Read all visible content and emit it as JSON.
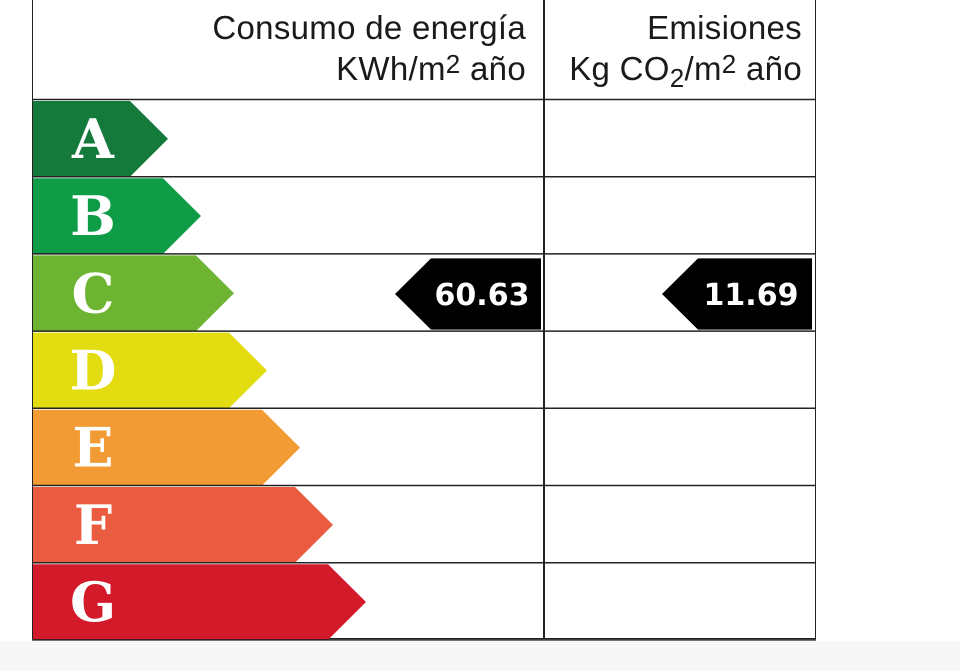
{
  "header": {
    "consumo_line1": "Consumo de energía",
    "consumo_line2_pre": "KWh/m",
    "consumo_line2_sup": "2",
    "consumo_line2_post": " año",
    "emisiones_line1": "Emisiones",
    "emisiones_line2_pre": "Kg CO",
    "emisiones_line2_sub": "2",
    "emisiones_line2_mid": "/m",
    "emisiones_line2_sup": "2",
    "emisiones_line2_post": " año"
  },
  "chart_data": {
    "type": "bar",
    "categories": [
      "A",
      "B",
      "C",
      "D",
      "E",
      "F",
      "G"
    ],
    "colors": [
      "#137a3b",
      "#0f9c47",
      "#6db432",
      "#e3dc10",
      "#f29a33",
      "#e95c3f",
      "#d31a2b"
    ],
    "consumo": {
      "grade": "C",
      "value": "60.63"
    },
    "emisiones": {
      "grade": "C",
      "value": "11.69"
    },
    "indicator_color": "#000000"
  }
}
